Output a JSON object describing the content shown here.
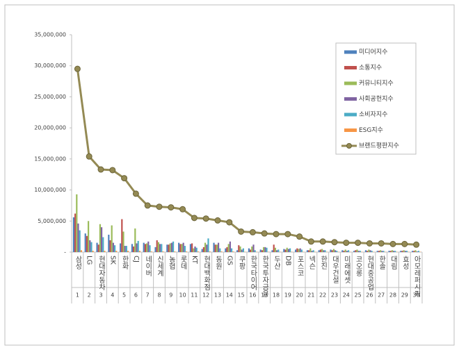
{
  "chart_data": {
    "type": "bar-line",
    "categories": [
      "삼성",
      "LG",
      "현대자동차",
      "SK",
      "한화",
      "CJ",
      "네이버",
      "신세계",
      "농협",
      "롯데",
      "KT",
      "현대백화점",
      "동원",
      "GS",
      "쿠팡",
      "한국타이어",
      "한국투자금융",
      "두산",
      "DB",
      "포스코",
      "넥슨",
      "한진",
      "대우건설",
      "미래에셋",
      "코오롱",
      "현대중공업",
      "한솔",
      "대림",
      "효성",
      "아모레퍼시픽"
    ],
    "category_ranks": [
      "1",
      "2",
      "3",
      "4",
      "5",
      "6",
      "7",
      "8",
      "9",
      "10",
      "11",
      "12",
      "13",
      "14",
      "15",
      "16",
      "17",
      "18",
      "19",
      "20",
      "21",
      "22",
      "23",
      "24",
      "25",
      "26",
      "27",
      "28",
      "29",
      "30"
    ],
    "series": [
      {
        "name": "미디어지수",
        "color": "#4f81bd",
        "values": [
          5600000,
          3000000,
          1500000,
          2800000,
          1400000,
          1300000,
          1500000,
          800000,
          1200000,
          1500000,
          1300000,
          500000,
          1500000,
          600000,
          300000,
          600000,
          400000,
          300000,
          500000,
          400000,
          300000,
          300000,
          400000,
          300000,
          200000,
          300000,
          200000,
          200000,
          200000,
          200000
        ]
      },
      {
        "name": "소통지수",
        "color": "#c0504d",
        "values": [
          6200000,
          2600000,
          1200000,
          1900000,
          5300000,
          900000,
          1300000,
          1900000,
          1200000,
          1300000,
          1400000,
          800000,
          1200000,
          800000,
          1100000,
          400000,
          300000,
          1200000,
          400000,
          600000,
          300000,
          400000,
          300000,
          200000,
          300000,
          200000,
          200000,
          200000,
          200000,
          200000
        ]
      },
      {
        "name": "커뮤니티지수",
        "color": "#9bbb59",
        "values": [
          9300000,
          5000000,
          4500000,
          4300000,
          3300000,
          3800000,
          1400000,
          1600000,
          1400000,
          1300000,
          600000,
          1500000,
          1200000,
          1300000,
          900000,
          900000,
          800000,
          700000,
          700000,
          500000,
          600000,
          500000,
          500000,
          400000,
          400000,
          400000,
          300000,
          300000,
          300000,
          300000
        ]
      },
      {
        "name": "사회공헌지수",
        "color": "#8064a2",
        "values": [
          4600000,
          1900000,
          4000000,
          1500000,
          1000000,
          1400000,
          1700000,
          1300000,
          1500000,
          1500000,
          900000,
          1200000,
          1500000,
          1700000,
          400000,
          1200000,
          800000,
          300000,
          500000,
          600000,
          200000,
          300000,
          300000,
          200000,
          200000,
          300000,
          200000,
          200000,
          200000,
          100000
        ]
      },
      {
        "name": "소비자지수",
        "color": "#4bacc6",
        "values": [
          3500000,
          1600000,
          2400000,
          1100000,
          1000000,
          1800000,
          1100000,
          1300000,
          1700000,
          1000000,
          700000,
          2200000,
          600000,
          600000,
          600000,
          300000,
          700000,
          400000,
          600000,
          400000,
          300000,
          300000,
          200000,
          300000,
          200000,
          200000,
          200000,
          200000,
          200000,
          200000
        ]
      },
      {
        "name": "ESG지수",
        "color": "#f79646",
        "values": [
          300000,
          200000,
          200000,
          200000,
          200000,
          200000,
          100000,
          100000,
          100000,
          100000,
          100000,
          100000,
          100000,
          100000,
          50000,
          50000,
          50000,
          50000,
          50000,
          50000,
          50000,
          50000,
          50000,
          50000,
          50000,
          50000,
          50000,
          50000,
          50000,
          50000
        ]
      },
      {
        "name": "브랜드평판지수",
        "type": "line",
        "color": "#948a54",
        "values": [
          29500000,
          15400000,
          13300000,
          13200000,
          11900000,
          9400000,
          7500000,
          7300000,
          7200000,
          6900000,
          5500000,
          5400000,
          5100000,
          4800000,
          3300000,
          3200000,
          3000000,
          2900000,
          2900000,
          2500000,
          1700000,
          1700000,
          1600000,
          1500000,
          1500000,
          1400000,
          1400000,
          1300000,
          1300000,
          1200000
        ]
      }
    ],
    "ylim": [
      0,
      35000000
    ],
    "yticks": [
      {
        "value": 0,
        "label": "-"
      },
      {
        "value": 5000000,
        "label": "5,000,000"
      },
      {
        "value": 10000000,
        "label": "10,000,000"
      },
      {
        "value": 15000000,
        "label": "15,000,000"
      },
      {
        "value": 20000000,
        "label": "20,000,000"
      },
      {
        "value": 25000000,
        "label": "25,000,000"
      },
      {
        "value": 30000000,
        "label": "30,000,000"
      },
      {
        "value": 35000000,
        "label": "35,000,000"
      }
    ],
    "grid": false,
    "legend": "top-right"
  }
}
